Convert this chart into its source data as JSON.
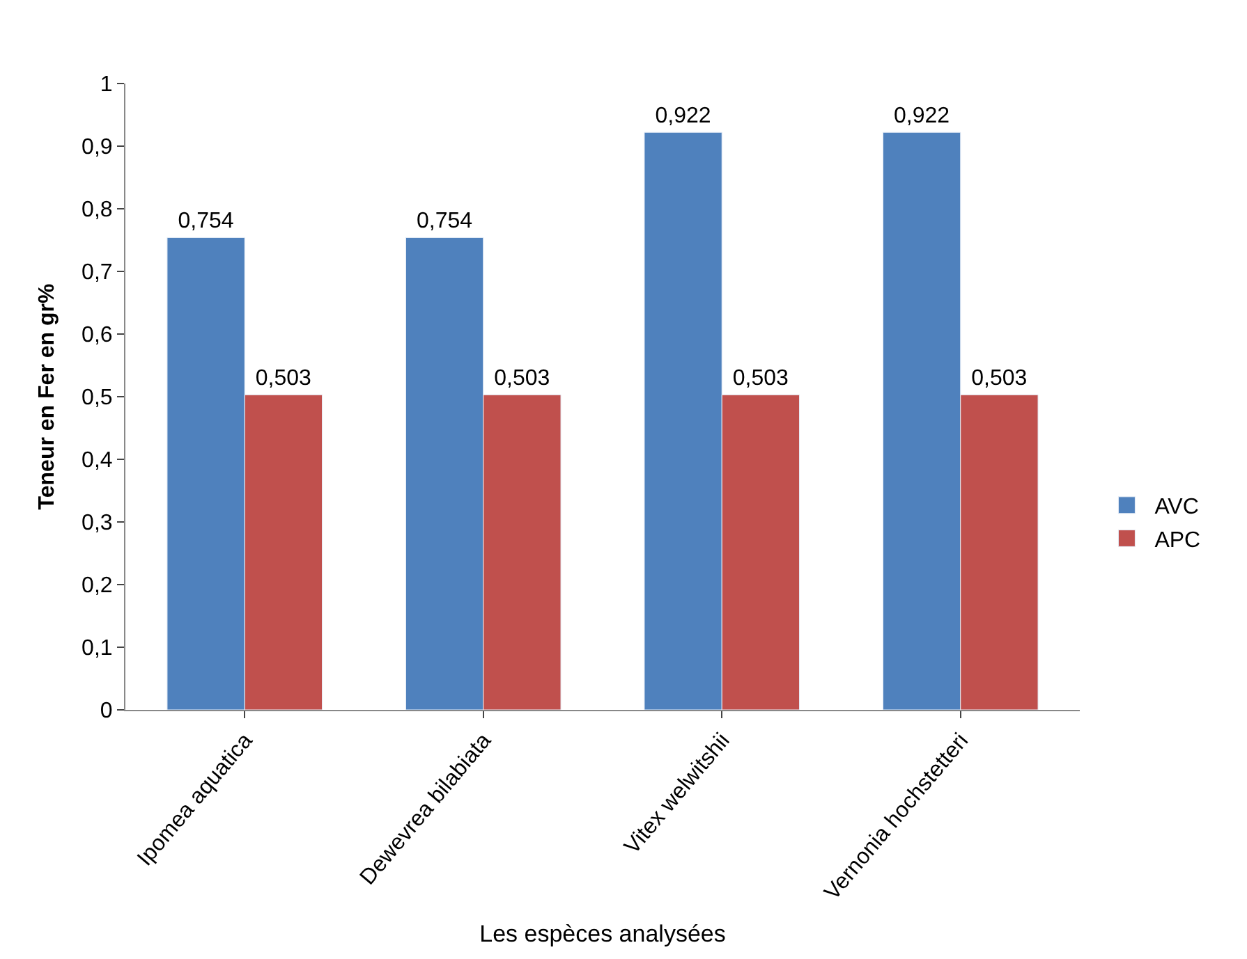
{
  "chart_data": {
    "type": "bar",
    "xlabel": "Les espèces analysées",
    "ylabel": "Teneur en Fer en gr%",
    "categories": [
      "Ipomea aquatica",
      "Dewevrea bilabiata",
      "Vitex welwitshii",
      "Vernonia hochstetteri"
    ],
    "series": [
      {
        "name": "AVC",
        "color": "#4f81bd",
        "values": [
          0.754,
          0.754,
          0.922,
          0.922
        ],
        "value_labels": [
          "0,754",
          "0,754",
          "0,922",
          "0,922"
        ]
      },
      {
        "name": "APC",
        "color": "#c0504d",
        "values": [
          0.503,
          0.503,
          0.503,
          0.503
        ],
        "value_labels": [
          "0,503",
          "0,503",
          "0,503",
          "0,503"
        ]
      }
    ],
    "ylim": [
      0,
      1
    ],
    "yticks": [
      {
        "value": 0,
        "label": "0"
      },
      {
        "value": 0.1,
        "label": "0,1"
      },
      {
        "value": 0.2,
        "label": "0,2"
      },
      {
        "value": 0.3,
        "label": "0,3"
      },
      {
        "value": 0.4,
        "label": "0,4"
      },
      {
        "value": 0.5,
        "label": "0,5"
      },
      {
        "value": 0.6,
        "label": "0,6"
      },
      {
        "value": 0.7,
        "label": "0,7"
      },
      {
        "value": 0.8,
        "label": "0,8"
      },
      {
        "value": 0.9,
        "label": "0,9"
      },
      {
        "value": 1,
        "label": "1"
      }
    ],
    "legend": "right"
  }
}
